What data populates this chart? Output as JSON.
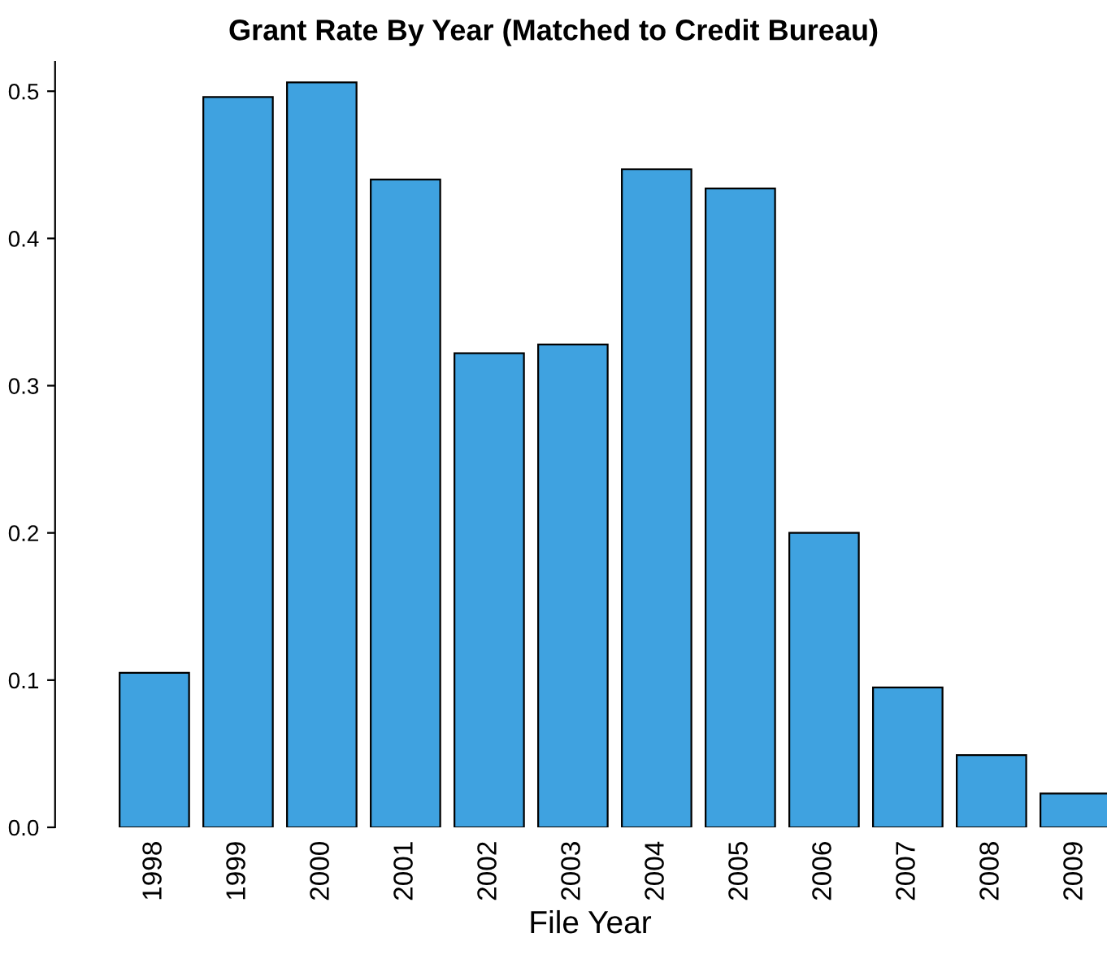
{
  "chart_data": {
    "type": "bar",
    "title": "Grant Rate By Year (Matched to Credit Bureau)",
    "xlabel": "File Year",
    "categories": [
      "1998",
      "1999",
      "2000",
      "2001",
      "2002",
      "2003",
      "2004",
      "2005",
      "2006",
      "2007",
      "2008",
      "2009"
    ],
    "values": [
      0.105,
      0.496,
      0.506,
      0.44,
      0.322,
      0.328,
      0.447,
      0.434,
      0.2,
      0.095,
      0.049,
      0.023
    ],
    "color": "#3fa2e0",
    "ylim": [
      0,
      0.52
    ],
    "yticks": [
      {
        "value": 0,
        "label": "0.0"
      },
      {
        "value": 0.1,
        "label": "0.1"
      },
      {
        "value": 0.2,
        "label": "0.2"
      },
      {
        "value": 0.3,
        "label": "0.3"
      },
      {
        "value": 0.4,
        "label": "0.4"
      },
      {
        "value": 0.5,
        "label": "0.5"
      }
    ],
    "grid": false
  }
}
